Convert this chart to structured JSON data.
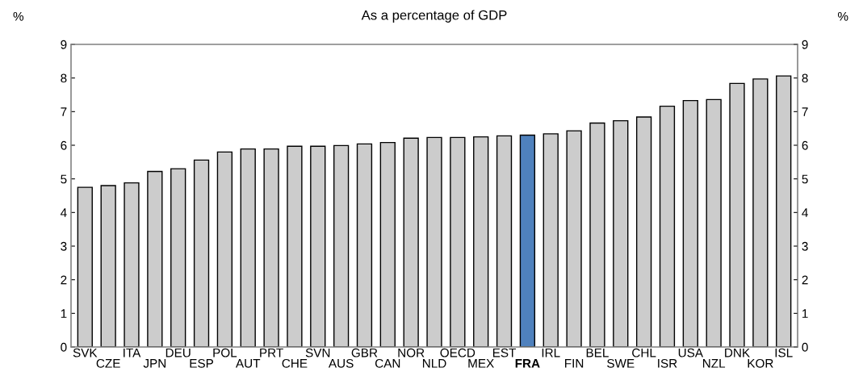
{
  "chart_data": {
    "type": "bar",
    "title": "As a percentage of GDP",
    "ylabel": "%",
    "y2label": "%",
    "categories": [
      "SVK",
      "CZE",
      "ITA",
      "JPN",
      "DEU",
      "ESP",
      "POL",
      "AUT",
      "PRT",
      "CHE",
      "SVN",
      "AUS",
      "GBR",
      "CAN",
      "NOR",
      "NLD",
      "OECD",
      "MEX",
      "EST",
      "FRA",
      "IRL",
      "FIN",
      "BEL",
      "SWE",
      "CHL",
      "ISR",
      "USA",
      "NZL",
      "DNK",
      "KOR",
      "ISL"
    ],
    "values": [
      4.75,
      4.8,
      4.88,
      5.22,
      5.3,
      5.56,
      5.8,
      5.89,
      5.89,
      5.97,
      5.97,
      5.99,
      6.04,
      6.08,
      6.21,
      6.23,
      6.23,
      6.25,
      6.28,
      6.3,
      6.34,
      6.43,
      6.66,
      6.73,
      6.84,
      7.16,
      7.33,
      7.36,
      7.84,
      7.97,
      8.06
    ],
    "colors": [
      "#cccccc",
      "#cccccc",
      "#cccccc",
      "#cccccc",
      "#cccccc",
      "#cccccc",
      "#cccccc",
      "#cccccc",
      "#cccccc",
      "#cccccc",
      "#cccccc",
      "#cccccc",
      "#cccccc",
      "#cccccc",
      "#cccccc",
      "#cccccc",
      "#cccccc",
      "#cccccc",
      "#cccccc",
      "#4f81bd",
      "#cccccc",
      "#cccccc",
      "#cccccc",
      "#cccccc",
      "#cccccc",
      "#cccccc",
      "#cccccc",
      "#cccccc",
      "#cccccc",
      "#cccccc",
      "#cccccc"
    ],
    "ylim": [
      0,
      9
    ],
    "yticks": [
      0,
      1,
      2,
      3,
      4,
      5,
      6,
      7,
      8,
      9
    ],
    "y2lim": [
      0,
      9
    ],
    "y2ticks": [
      0,
      1,
      2,
      3,
      4,
      5,
      6,
      7,
      8,
      9
    ],
    "grid": false,
    "legend": false
  }
}
